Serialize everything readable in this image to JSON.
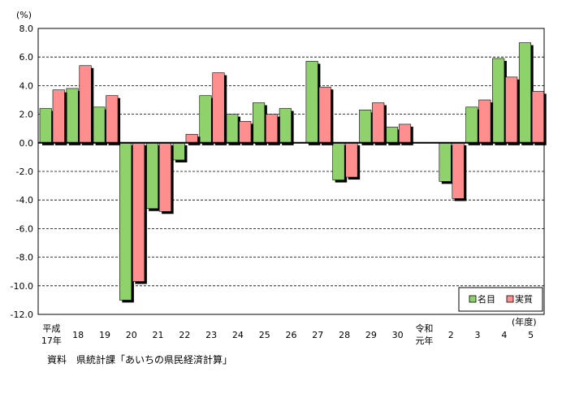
{
  "chart_data": {
    "type": "bar",
    "y_unit": "(%)",
    "x_unit": "(年度)",
    "categories": [
      [
        "平成",
        "17年"
      ],
      [
        "18"
      ],
      [
        "19"
      ],
      [
        "20"
      ],
      [
        "21"
      ],
      [
        "22"
      ],
      [
        "23"
      ],
      [
        "24"
      ],
      [
        "25"
      ],
      [
        "26"
      ],
      [
        "27"
      ],
      [
        "28"
      ],
      [
        "29"
      ],
      [
        "30"
      ],
      [
        "令和",
        "元年"
      ],
      [
        "2"
      ],
      [
        "3"
      ],
      [
        "4"
      ],
      [
        "5"
      ]
    ],
    "series": [
      {
        "name": "名目",
        "color": "#8fd16a",
        "values": [
          2.4,
          3.8,
          2.5,
          -11.0,
          -4.6,
          -1.2,
          3.3,
          2.0,
          2.8,
          2.4,
          5.7,
          -2.6,
          2.3,
          1.1,
          null,
          -2.7,
          2.5,
          5.9,
          7.0
        ]
      },
      {
        "name": "実質",
        "color": "#ff8f8f",
        "values": [
          3.7,
          5.4,
          3.3,
          -9.7,
          -4.8,
          0.6,
          4.9,
          1.5,
          2.0,
          0.0,
          3.9,
          -2.4,
          2.8,
          1.3,
          null,
          -3.9,
          3.0,
          4.6,
          3.6
        ]
      }
    ],
    "y_ticks": [
      "8.0",
      "6.0",
      "4.0",
      "2.0",
      "0.0",
      "-2.0",
      "-4.0",
      "-6.0",
      "-8.0",
      "-10.0",
      "-12.0"
    ],
    "ylim": [
      -12,
      8
    ],
    "grid": true,
    "legend_position": "bottom-right"
  },
  "source": "資料　県統計課「あいちの県民経済計算」"
}
